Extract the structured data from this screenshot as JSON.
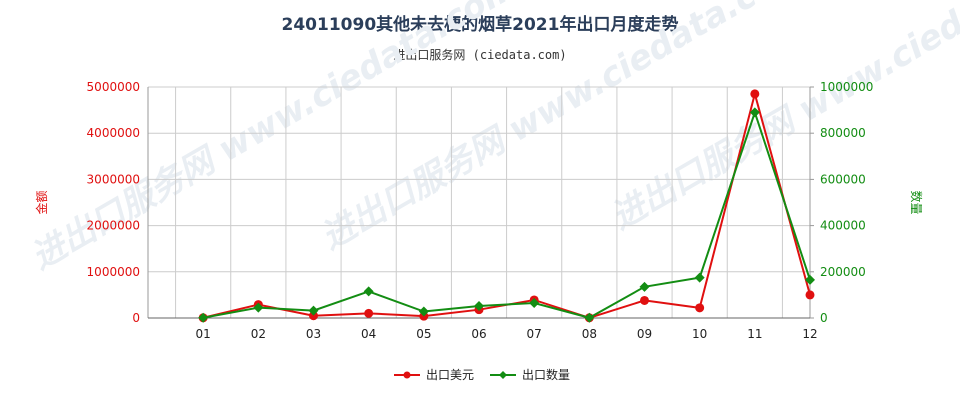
{
  "title": "24011090其他未去梗的烟草2021年出口月度走势",
  "subtitle": "进出口服务网 (ciedata.com)",
  "watermark": "进出口服务网 www.ciedata.com",
  "colors": {
    "amount": "#e01010",
    "quantity": "#138d13",
    "title": "#2b3e5a"
  },
  "chart_data": {
    "type": "line",
    "categories": [
      "01",
      "02",
      "03",
      "04",
      "05",
      "06",
      "07",
      "08",
      "09",
      "10",
      "11",
      "12"
    ],
    "series": [
      {
        "name": "出口美元",
        "axis": "left",
        "color": "#e01010",
        "marker": "circle",
        "values": [
          5000,
          290000,
          50000,
          100000,
          40000,
          180000,
          390000,
          5000,
          380000,
          220000,
          4850000,
          500000
        ]
      },
      {
        "name": "出口数量",
        "axis": "right",
        "color": "#138d13",
        "marker": "diamond",
        "values": [
          1000,
          45000,
          32000,
          115000,
          28000,
          52000,
          65000,
          1000,
          135000,
          175000,
          890000,
          165000
        ]
      }
    ],
    "y_left": {
      "label": "金额",
      "ylim": [
        0,
        5000000
      ],
      "ticks": [
        "0",
        "1000000",
        "2000000",
        "3000000",
        "4000000",
        "5000000"
      ]
    },
    "y_right": {
      "label": "数量",
      "ylim": [
        0,
        1000000
      ],
      "ticks": [
        "0",
        "200000",
        "400000",
        "600000",
        "800000",
        "1000000"
      ]
    },
    "grid": true,
    "legend_position": "bottom"
  }
}
